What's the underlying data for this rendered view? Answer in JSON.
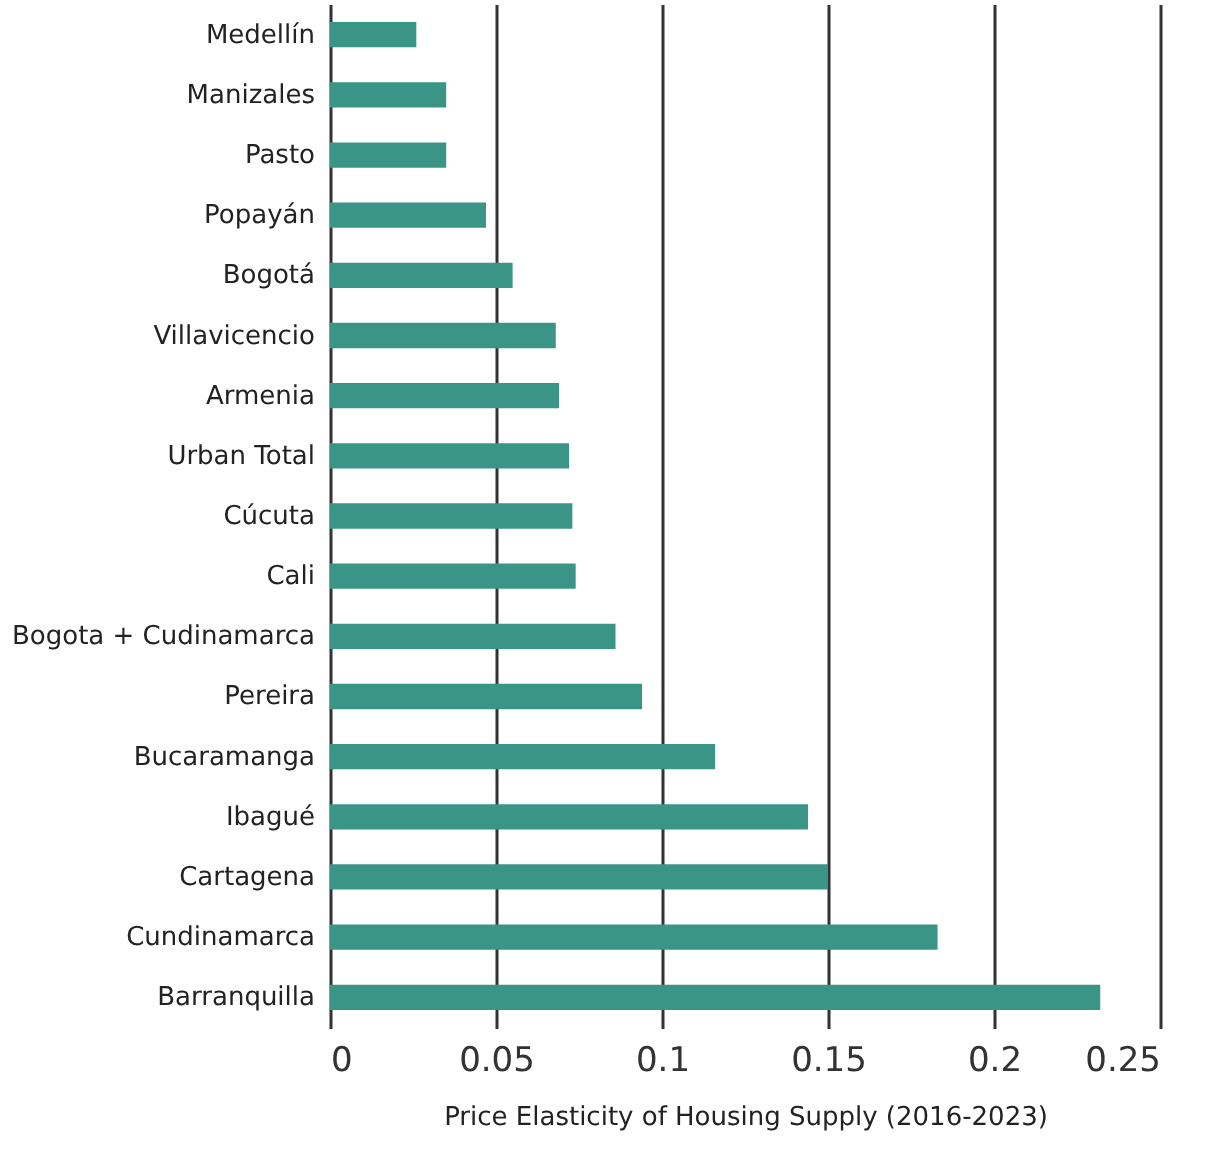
{
  "chart_data": {
    "type": "bar",
    "orientation": "horizontal",
    "xlabel": "Price Elasticity of Housing Supply (2016-2023)",
    "categories": [
      "Medellín",
      "Manizales",
      "Pasto",
      "Popayán",
      "Bogotá",
      "Villavicencio",
      "Armenia",
      "Urban Total",
      "Cúcuta",
      "Cali",
      "Bogota + Cudinamarca",
      "Pereira",
      "Bucaramanga",
      "Ibagué",
      "Cartagena",
      "Cundinamarca",
      "Barranquilla"
    ],
    "values": [
      0.026,
      0.035,
      0.035,
      0.047,
      0.055,
      0.068,
      0.069,
      0.072,
      0.073,
      0.074,
      0.086,
      0.094,
      0.116,
      0.144,
      0.15,
      0.183,
      0.232
    ],
    "color": "#3a9587",
    "xlim": [
      0,
      0.25
    ],
    "xticks": [
      0,
      0.05,
      0.1,
      0.15,
      0.2,
      0.25
    ],
    "grid": "x"
  }
}
